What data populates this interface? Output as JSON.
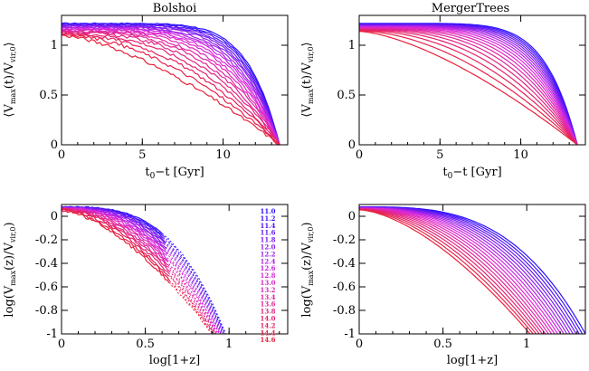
{
  "legend": {
    "labels": [
      "11.0",
      "11.2",
      "11.4",
      "11.6",
      "11.8",
      "12.0",
      "12.2",
      "12.4",
      "12.6",
      "12.8",
      "13.0",
      "13.2",
      "13.4",
      "13.6",
      "13.8",
      "14.0",
      "14.2",
      "14.4",
      "14.6"
    ],
    "colors_from_to": [
      "#2a12ff",
      "#e8203a"
    ]
  },
  "chart_data": [
    {
      "type": "line",
      "title": "Bolshoi",
      "xlabel": "t0−t [Gyr]",
      "ylabel": "⟨Vmax(t)/Vvir,0⟩",
      "xlim": [
        0,
        14
      ],
      "ylim": [
        0,
        1.3
      ],
      "xticks": [
        0,
        5,
        10
      ],
      "yticks": [
        0,
        0.5,
        1
      ],
      "series_count": 19,
      "series_names": [
        "11.0",
        "11.2",
        "11.4",
        "11.6",
        "11.8",
        "12.0",
        "12.2",
        "12.4",
        "12.6",
        "12.8",
        "13.0",
        "13.2",
        "13.4",
        "13.6",
        "13.8",
        "14.0",
        "14.2",
        "14.4",
        "14.6"
      ],
      "curve_start_y": {
        "first": 1.22,
        "last": 1.1
      },
      "curve_end_x": 13.5,
      "noisy": true
    },
    {
      "type": "line",
      "title": "MergerTrees",
      "xlabel": "t0−t [Gyr]",
      "ylabel": "⟨Vmax(t)/Vvir,0⟩",
      "xlim": [
        0,
        14
      ],
      "ylim": [
        0,
        1.3
      ],
      "xticks": [
        0,
        5,
        10
      ],
      "yticks": [
        0,
        0.5,
        1
      ],
      "series_count": 19,
      "curve_start_y": {
        "first": 1.22,
        "last": 1.14
      },
      "curve_end_x": 13.5,
      "noisy": false
    },
    {
      "type": "line",
      "title": "",
      "xlabel": "log[1+z]",
      "ylabel": "log(Vmax(z)/Vvir,0)",
      "xlim": [
        0,
        1.35
      ],
      "ylim": [
        -1,
        0.1
      ],
      "xticks": [
        0,
        0.5,
        1
      ],
      "yticks": [
        -1,
        -0.8,
        -0.6,
        -0.4,
        -0.2,
        0
      ],
      "series_count": 19,
      "series_names": [
        "11.0",
        "11.2",
        "11.4",
        "11.6",
        "11.8",
        "12.0",
        "12.2",
        "12.4",
        "12.6",
        "12.8",
        "13.0",
        "13.2",
        "13.4",
        "13.6",
        "13.8",
        "14.0",
        "14.2",
        "14.4",
        "14.6"
      ],
      "curve_start_y": {
        "first": 0.08,
        "last": 0.05
      },
      "curve_end_x": {
        "first": 0.98,
        "last": 0.9
      },
      "noisy": true,
      "dotted_tail": true,
      "legend_position": "right"
    },
    {
      "type": "line",
      "title": "",
      "xlabel": "log[1+z]",
      "ylabel": "log(Vmax(z)/Vvir,0)",
      "xlim": [
        0,
        1.35
      ],
      "ylim": [
        -1,
        0.1
      ],
      "xticks": [
        0,
        0.5,
        1
      ],
      "yticks": [
        -1,
        -0.8,
        -0.6,
        -0.4,
        -0.2,
        0
      ],
      "series_count": 19,
      "curve_start_y": {
        "first": 0.08,
        "last": 0.055
      },
      "curve_end_x": {
        "first": 1.35,
        "last": 1.02
      },
      "noisy": false
    }
  ]
}
